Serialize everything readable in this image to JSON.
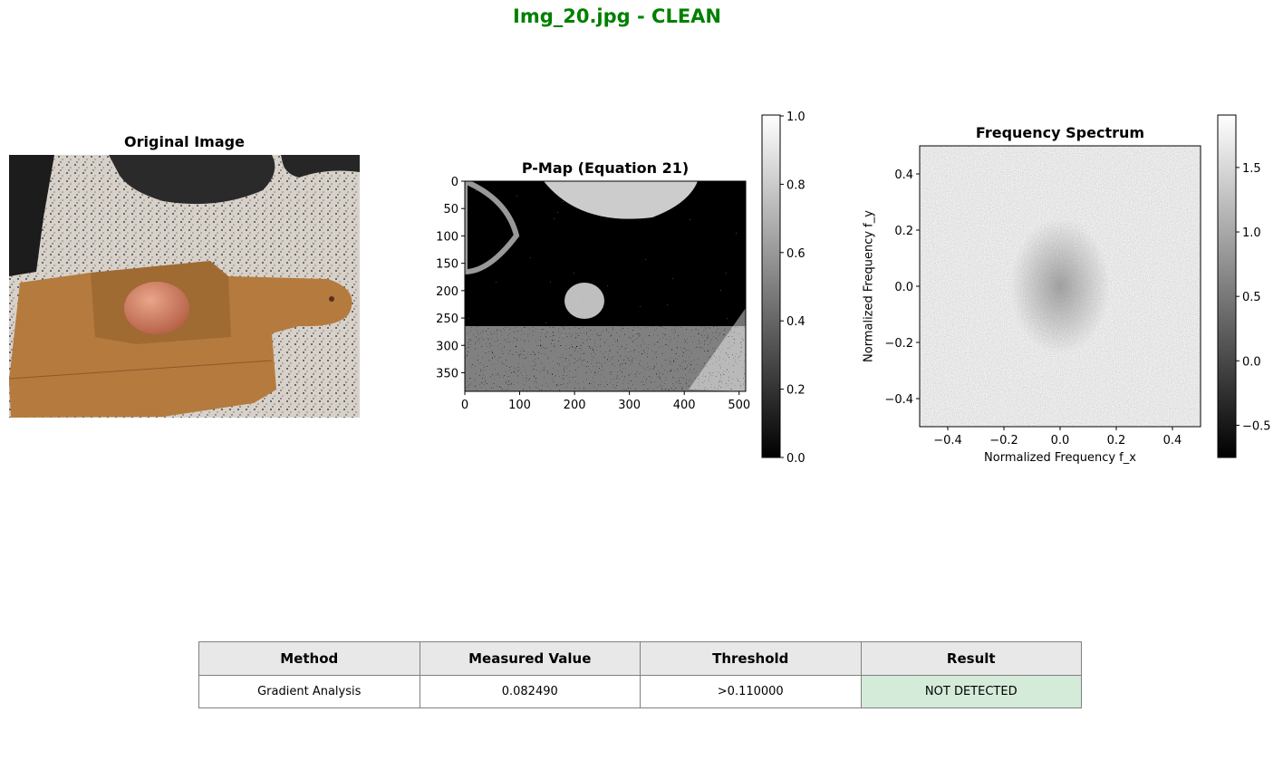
{
  "figure": {
    "suptitle": "Img_20.jpg - CLEAN",
    "suptitle_color": "#008000"
  },
  "panels": {
    "original": {
      "title": "Original Image"
    },
    "pmap": {
      "title": "P-Map (Equation 21)"
    },
    "spectrum": {
      "title": "Frequency Spectrum",
      "xlabel": "Normalized Frequency f_x",
      "ylabel": "Normalized Frequency f_y"
    }
  },
  "chart_data": [
    {
      "type": "heatmap",
      "title": "P-Map (Equation 21)",
      "x_ticks": [
        "0",
        "100",
        "200",
        "300",
        "400",
        "500"
      ],
      "y_ticks": [
        "0",
        "50",
        "100",
        "150",
        "200",
        "250",
        "300",
        "350"
      ],
      "xlim": [
        0,
        512
      ],
      "ylim": [
        384,
        0
      ],
      "colormap": "gray",
      "colorbar": {
        "range": [
          0.0,
          1.0
        ],
        "ticks": [
          "0.0",
          "0.2",
          "0.4",
          "0.6",
          "0.8",
          "1.0"
        ]
      }
    },
    {
      "type": "heatmap",
      "title": "Frequency Spectrum",
      "xlabel": "Normalized Frequency f_x",
      "ylabel": "Normalized Frequency f_y",
      "x_ticks": [
        "−0.4",
        "−0.2",
        "0.0",
        "0.2",
        "0.4"
      ],
      "y_ticks": [
        "0.4",
        "0.2",
        "0.0",
        "−0.2",
        "−0.4"
      ],
      "xlim": [
        -0.5,
        0.5
      ],
      "ylim": [
        -0.5,
        0.5
      ],
      "colormap": "gray",
      "colorbar": {
        "range": [
          -0.75,
          1.9
        ],
        "ticks": [
          "1.5",
          "1.0",
          "0.5",
          "0.0",
          "−0.5"
        ]
      }
    }
  ],
  "results_table": {
    "headers": [
      "Method",
      "Measured Value",
      "Threshold",
      "Result"
    ],
    "rows": [
      [
        "Gradient Analysis",
        "0.082490",
        ">0.110000",
        "NOT DETECTED"
      ]
    ],
    "result_color": "#d4ebd9"
  }
}
